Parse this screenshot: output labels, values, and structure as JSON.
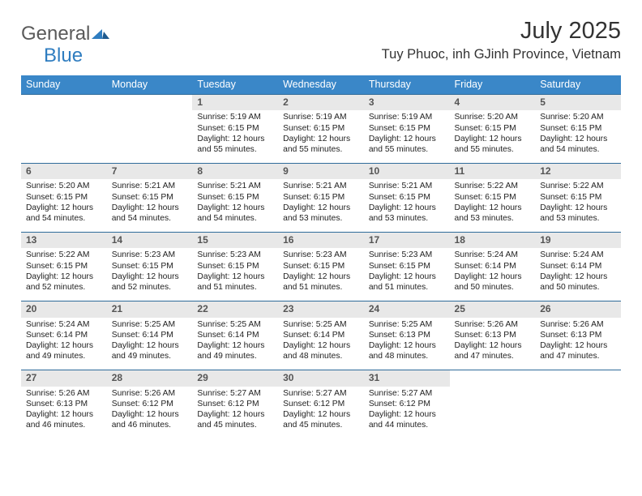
{
  "brand": {
    "general": "General",
    "blue": "Blue"
  },
  "title": "July 2025",
  "location": "Tuy Phuoc, inh GJinh Province, Vietnam",
  "colors": {
    "header_bg": "#3a87c8",
    "header_text": "#ffffff",
    "band_bg": "#e8e8e8",
    "band_text": "#555555",
    "rule": "#2f6b9a",
    "body_text": "#222222"
  },
  "daysOfWeek": [
    "Sunday",
    "Monday",
    "Tuesday",
    "Wednesday",
    "Thursday",
    "Friday",
    "Saturday"
  ],
  "weeks": [
    [
      null,
      null,
      {
        "n": "1",
        "sr": "Sunrise: 5:19 AM",
        "ss": "Sunset: 6:15 PM",
        "dl": "Daylight: 12 hours and 55 minutes."
      },
      {
        "n": "2",
        "sr": "Sunrise: 5:19 AM",
        "ss": "Sunset: 6:15 PM",
        "dl": "Daylight: 12 hours and 55 minutes."
      },
      {
        "n": "3",
        "sr": "Sunrise: 5:19 AM",
        "ss": "Sunset: 6:15 PM",
        "dl": "Daylight: 12 hours and 55 minutes."
      },
      {
        "n": "4",
        "sr": "Sunrise: 5:20 AM",
        "ss": "Sunset: 6:15 PM",
        "dl": "Daylight: 12 hours and 55 minutes."
      },
      {
        "n": "5",
        "sr": "Sunrise: 5:20 AM",
        "ss": "Sunset: 6:15 PM",
        "dl": "Daylight: 12 hours and 54 minutes."
      }
    ],
    [
      {
        "n": "6",
        "sr": "Sunrise: 5:20 AM",
        "ss": "Sunset: 6:15 PM",
        "dl": "Daylight: 12 hours and 54 minutes."
      },
      {
        "n": "7",
        "sr": "Sunrise: 5:21 AM",
        "ss": "Sunset: 6:15 PM",
        "dl": "Daylight: 12 hours and 54 minutes."
      },
      {
        "n": "8",
        "sr": "Sunrise: 5:21 AM",
        "ss": "Sunset: 6:15 PM",
        "dl": "Daylight: 12 hours and 54 minutes."
      },
      {
        "n": "9",
        "sr": "Sunrise: 5:21 AM",
        "ss": "Sunset: 6:15 PM",
        "dl": "Daylight: 12 hours and 53 minutes."
      },
      {
        "n": "10",
        "sr": "Sunrise: 5:21 AM",
        "ss": "Sunset: 6:15 PM",
        "dl": "Daylight: 12 hours and 53 minutes."
      },
      {
        "n": "11",
        "sr": "Sunrise: 5:22 AM",
        "ss": "Sunset: 6:15 PM",
        "dl": "Daylight: 12 hours and 53 minutes."
      },
      {
        "n": "12",
        "sr": "Sunrise: 5:22 AM",
        "ss": "Sunset: 6:15 PM",
        "dl": "Daylight: 12 hours and 53 minutes."
      }
    ],
    [
      {
        "n": "13",
        "sr": "Sunrise: 5:22 AM",
        "ss": "Sunset: 6:15 PM",
        "dl": "Daylight: 12 hours and 52 minutes."
      },
      {
        "n": "14",
        "sr": "Sunrise: 5:23 AM",
        "ss": "Sunset: 6:15 PM",
        "dl": "Daylight: 12 hours and 52 minutes."
      },
      {
        "n": "15",
        "sr": "Sunrise: 5:23 AM",
        "ss": "Sunset: 6:15 PM",
        "dl": "Daylight: 12 hours and 51 minutes."
      },
      {
        "n": "16",
        "sr": "Sunrise: 5:23 AM",
        "ss": "Sunset: 6:15 PM",
        "dl": "Daylight: 12 hours and 51 minutes."
      },
      {
        "n": "17",
        "sr": "Sunrise: 5:23 AM",
        "ss": "Sunset: 6:15 PM",
        "dl": "Daylight: 12 hours and 51 minutes."
      },
      {
        "n": "18",
        "sr": "Sunrise: 5:24 AM",
        "ss": "Sunset: 6:14 PM",
        "dl": "Daylight: 12 hours and 50 minutes."
      },
      {
        "n": "19",
        "sr": "Sunrise: 5:24 AM",
        "ss": "Sunset: 6:14 PM",
        "dl": "Daylight: 12 hours and 50 minutes."
      }
    ],
    [
      {
        "n": "20",
        "sr": "Sunrise: 5:24 AM",
        "ss": "Sunset: 6:14 PM",
        "dl": "Daylight: 12 hours and 49 minutes."
      },
      {
        "n": "21",
        "sr": "Sunrise: 5:25 AM",
        "ss": "Sunset: 6:14 PM",
        "dl": "Daylight: 12 hours and 49 minutes."
      },
      {
        "n": "22",
        "sr": "Sunrise: 5:25 AM",
        "ss": "Sunset: 6:14 PM",
        "dl": "Daylight: 12 hours and 49 minutes."
      },
      {
        "n": "23",
        "sr": "Sunrise: 5:25 AM",
        "ss": "Sunset: 6:14 PM",
        "dl": "Daylight: 12 hours and 48 minutes."
      },
      {
        "n": "24",
        "sr": "Sunrise: 5:25 AM",
        "ss": "Sunset: 6:13 PM",
        "dl": "Daylight: 12 hours and 48 minutes."
      },
      {
        "n": "25",
        "sr": "Sunrise: 5:26 AM",
        "ss": "Sunset: 6:13 PM",
        "dl": "Daylight: 12 hours and 47 minutes."
      },
      {
        "n": "26",
        "sr": "Sunrise: 5:26 AM",
        "ss": "Sunset: 6:13 PM",
        "dl": "Daylight: 12 hours and 47 minutes."
      }
    ],
    [
      {
        "n": "27",
        "sr": "Sunrise: 5:26 AM",
        "ss": "Sunset: 6:13 PM",
        "dl": "Daylight: 12 hours and 46 minutes."
      },
      {
        "n": "28",
        "sr": "Sunrise: 5:26 AM",
        "ss": "Sunset: 6:12 PM",
        "dl": "Daylight: 12 hours and 46 minutes."
      },
      {
        "n": "29",
        "sr": "Sunrise: 5:27 AM",
        "ss": "Sunset: 6:12 PM",
        "dl": "Daylight: 12 hours and 45 minutes."
      },
      {
        "n": "30",
        "sr": "Sunrise: 5:27 AM",
        "ss": "Sunset: 6:12 PM",
        "dl": "Daylight: 12 hours and 45 minutes."
      },
      {
        "n": "31",
        "sr": "Sunrise: 5:27 AM",
        "ss": "Sunset: 6:12 PM",
        "dl": "Daylight: 12 hours and 44 minutes."
      },
      null,
      null
    ]
  ]
}
